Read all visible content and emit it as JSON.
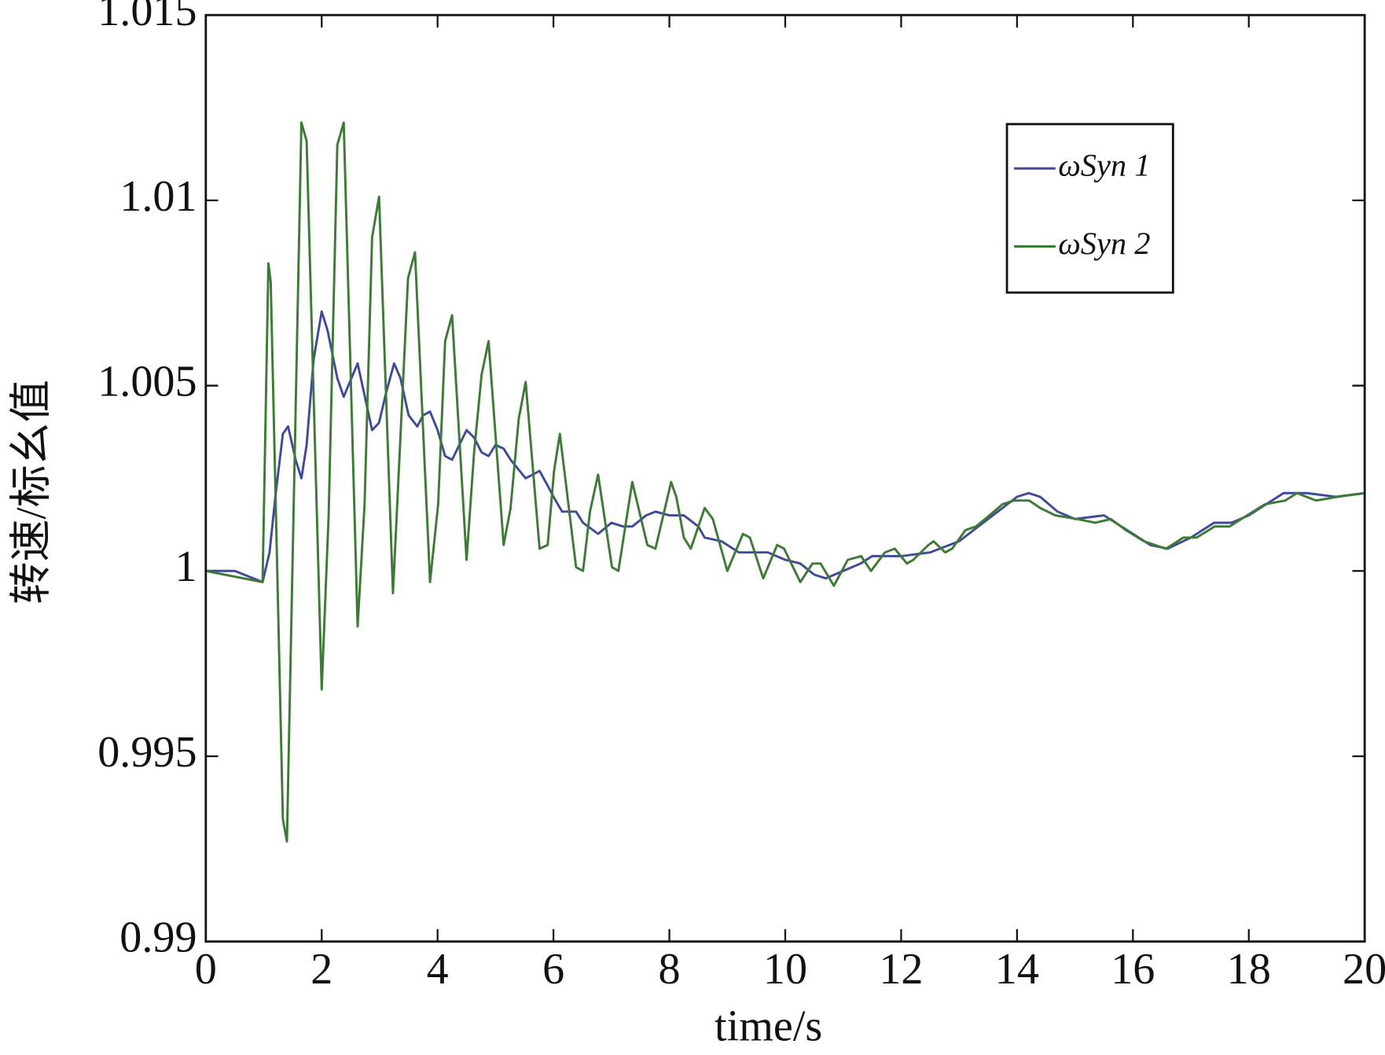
{
  "chart_data": {
    "type": "line",
    "x_label": "time/s",
    "y_label": "转速/标幺值",
    "xlim": [
      0,
      20
    ],
    "xticks": [
      0,
      2,
      4,
      6,
      8,
      10,
      12,
      14,
      16,
      18,
      20
    ],
    "ylim": [
      0.99,
      1.015
    ],
    "yticks": [
      0.99,
      0.995,
      1,
      1.005,
      1.01,
      1.015
    ],
    "grid": false,
    "legend": "upper right",
    "series": [
      {
        "name": "ωSyn 1",
        "color": "#3f4a9a",
        "x": [
          0,
          0.5,
          0.98,
          1.1,
          1.2,
          1.33,
          1.42,
          1.55,
          1.65,
          1.74,
          1.86,
          2.0,
          2.1,
          2.27,
          2.38,
          2.62,
          2.87,
          2.99,
          3.11,
          3.25,
          3.36,
          3.5,
          3.65,
          3.75,
          3.87,
          4.0,
          4.13,
          4.25,
          4.5,
          4.63,
          4.76,
          4.88,
          5.0,
          5.14,
          5.26,
          5.52,
          5.76,
          5.9,
          6.0,
          6.15,
          6.39,
          6.51,
          6.77,
          7.0,
          7.2,
          7.36,
          7.6,
          7.76,
          8.0,
          8.25,
          8.5,
          8.61,
          8.9,
          9.2,
          9.4,
          9.7,
          10.0,
          10.26,
          10.5,
          10.7,
          11.0,
          11.3,
          11.5,
          12.0,
          12.5,
          13.0,
          13.5,
          14.0,
          14.2,
          14.4,
          14.7,
          15.0,
          15.5,
          15.9,
          16.3,
          16.6,
          17.0,
          17.4,
          17.7,
          18.0,
          18.3,
          18.6,
          19.0,
          19.5,
          20
        ],
        "values": [
          1.0,
          1.0,
          0.9997,
          1.0005,
          1.002,
          1.0037,
          1.0039,
          1.003,
          1.0025,
          1.0034,
          1.0057,
          1.007,
          1.0065,
          1.0052,
          1.0047,
          1.0056,
          1.0038,
          1.004,
          1.0048,
          1.0056,
          1.0052,
          1.0042,
          1.0039,
          1.0042,
          1.0043,
          1.0038,
          1.0031,
          1.003,
          1.0038,
          1.0036,
          1.0032,
          1.0031,
          1.0034,
          1.0033,
          1.003,
          1.0025,
          1.0027,
          1.0023,
          1.002,
          1.0016,
          1.0016,
          1.0013,
          1.001,
          1.0013,
          1.0012,
          1.0012,
          1.0015,
          1.0016,
          1.0015,
          1.0015,
          1.0012,
          1.0009,
          1.0008,
          1.0005,
          1.0005,
          1.0005,
          1.0003,
          1.0002,
          0.9999,
          0.9998,
          1.0,
          1.0002,
          1.0004,
          1.0004,
          1.0005,
          1.0008,
          1.0014,
          1.002,
          1.0021,
          1.002,
          1.0016,
          1.0014,
          1.0015,
          1.0011,
          1.0007,
          1.0006,
          1.0009,
          1.0013,
          1.0013,
          1.0015,
          1.0018,
          1.0021,
          1.0021,
          1.002,
          1.0021
        ]
      },
      {
        "name": "ωSyn 2",
        "color": "#3d7a35",
        "x": [
          0,
          0.98,
          1.08,
          1.12,
          1.33,
          1.4,
          1.65,
          1.74,
          2.0,
          2.12,
          2.27,
          2.38,
          2.62,
          2.74,
          2.87,
          2.99,
          3.23,
          3.49,
          3.61,
          3.87,
          4.01,
          4.13,
          4.25,
          4.5,
          4.63,
          4.76,
          4.88,
          5.14,
          5.26,
          5.4,
          5.52,
          5.76,
          5.9,
          6.01,
          6.11,
          6.39,
          6.51,
          6.63,
          6.77,
          7.01,
          7.12,
          7.36,
          7.62,
          7.76,
          8.03,
          8.12,
          8.25,
          8.37,
          8.61,
          8.75,
          9.0,
          9.27,
          9.39,
          9.62,
          9.86,
          9.98,
          10.26,
          10.47,
          10.61,
          10.84,
          11.08,
          11.31,
          11.48,
          11.72,
          11.89,
          12.1,
          12.21,
          12.47,
          12.56,
          12.76,
          12.88,
          13.11,
          13.29,
          13.45,
          13.75,
          13.95,
          14.21,
          14.4,
          14.66,
          15.04,
          15.35,
          15.62,
          15.88,
          16.19,
          16.57,
          16.87,
          17.1,
          17.41,
          17.67,
          17.97,
          18.28,
          18.63,
          18.83,
          19.16,
          19.54,
          20
        ],
        "values": [
          1.0,
          0.9997,
          1.0083,
          1.0078,
          0.9933,
          0.9927,
          1.0121,
          1.0116,
          0.9968,
          1.0015,
          1.0115,
          1.0121,
          0.9985,
          1.0018,
          1.009,
          1.0101,
          0.9994,
          1.0079,
          1.0086,
          0.9997,
          1.0018,
          1.0062,
          1.0069,
          1.0003,
          1.0032,
          1.0053,
          1.0062,
          1.0007,
          1.0017,
          1.0041,
          1.0051,
          1.0006,
          1.0007,
          1.0027,
          1.0037,
          1.0001,
          1.0,
          1.0016,
          1.0026,
          1.0001,
          1.0,
          1.0024,
          1.0007,
          1.0006,
          1.0024,
          1.002,
          1.0009,
          1.0006,
          1.0017,
          1.0014,
          1.0,
          1.001,
          1.0009,
          0.9998,
          1.0007,
          1.0006,
          0.9997,
          1.0002,
          1.0002,
          0.9996,
          1.0003,
          1.0004,
          1.0,
          1.0005,
          1.0006,
          1.0002,
          1.0003,
          1.0007,
          1.0008,
          1.0005,
          1.0006,
          1.0011,
          1.0012,
          1.0014,
          1.0018,
          1.0019,
          1.0019,
          1.0017,
          1.0015,
          1.0014,
          1.0013,
          1.0014,
          1.0011,
          1.0008,
          1.0006,
          1.0009,
          1.0009,
          1.0012,
          1.0012,
          1.0015,
          1.0018,
          1.0019,
          1.0021,
          1.0019,
          1.002,
          1.0021
        ]
      }
    ]
  }
}
